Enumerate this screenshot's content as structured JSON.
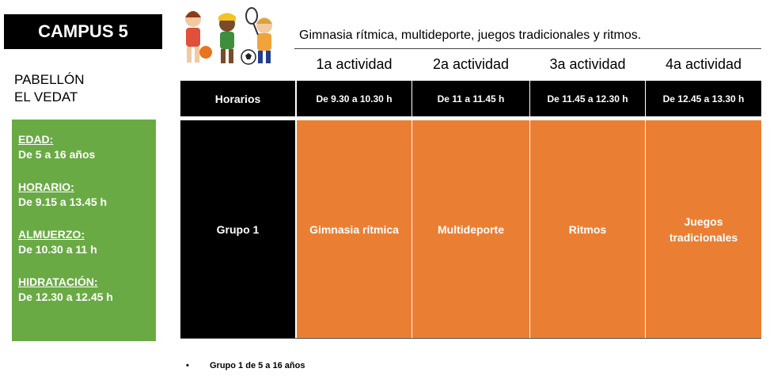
{
  "campus": {
    "title": "CAMPUS 5"
  },
  "venue": {
    "line1": "PABELLÓN",
    "line2": "EL VEDAT"
  },
  "info": [
    {
      "label": "EDAD:",
      "value": "De 5 a 16 años"
    },
    {
      "label": "HORARIO:",
      "value": "De 9.15 a 13.45 h"
    },
    {
      "label": "ALMUERZO:",
      "value": "De 10.30 a 11 h"
    },
    {
      "label": "HIDRATACIÓN:",
      "value": "De 12.30 a 12.45 h"
    }
  ],
  "subtitle": "Gimnasia rítmica, multideporte, juegos tradicionales y ritmos.",
  "illustration": {
    "icon": "kids-sports-illustration"
  },
  "schedule": {
    "row_header": "Horarios",
    "group": "Grupo 1",
    "activities": [
      {
        "heading": "1a actividad",
        "time": "De 9.30  a 10.30 h",
        "name": "Gimnasia rítmica"
      },
      {
        "heading": "2a actividad",
        "time": "De 11 a 11.45 h",
        "name": "Multideporte"
      },
      {
        "heading": "3a actividad",
        "time": "De 11.45 a 12.30 h",
        "name": "Ritmos"
      },
      {
        "heading": "4a actividad",
        "time": "De 12.45 a 13.30 h",
        "name": "Juegos tradicionales"
      }
    ]
  },
  "footnote": {
    "bullet": "•",
    "text": "Grupo 1 de 5 a 16 años"
  },
  "colors": {
    "green": "#6aaa45",
    "orange": "#ea7f33",
    "black": "#000000"
  }
}
